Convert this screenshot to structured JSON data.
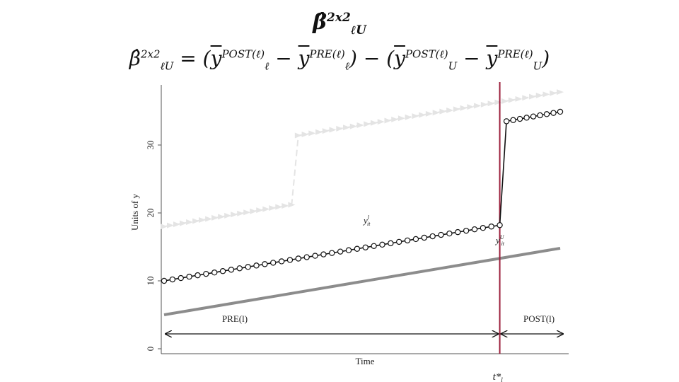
{
  "slide": {
    "title": "β̂",
    "title_sup": "2x2",
    "title_sub": "ℓU",
    "formula": {
      "lhs": "β̂",
      "lhs_sup": "2x2",
      "lhs_sub": "ℓU",
      "eq": "=",
      "open": "(",
      "close": ")",
      "minus": "−",
      "ybar": "y",
      "post_sup": "POST(ℓ)",
      "pre_sup": "PRE(ℓ)",
      "sub_l": "ℓ",
      "sub_U": "U"
    }
  },
  "chart_data": {
    "type": "line",
    "xlabel": "Time",
    "ylabel": "Units of y",
    "ylim": [
      0,
      40
    ],
    "yticks": [
      0,
      10,
      20,
      30
    ],
    "xlim": [
      0,
      60
    ],
    "treatment_time": 51,
    "treatment_label_main": "t*",
    "treatment_label_sub": "l",
    "region_labels": {
      "pre": "PRE(l)",
      "post": "POST(l)"
    },
    "series": [
      {
        "name": "treated-l",
        "label_main": "y",
        "label_sup": "l",
        "label_sub": "it",
        "style": "black-circles",
        "segments": [
          {
            "x": [
              1,
              51
            ],
            "y": [
              10.0,
              18.2
            ],
            "count": 41
          },
          {
            "x": [
              52,
              60
            ],
            "y": [
              33.5,
              34.9
            ],
            "count": 9
          }
        ]
      },
      {
        "name": "dashed-k",
        "style": "light-grey-triangles-dashed",
        "segments": [
          {
            "x": [
              1,
              20
            ],
            "y": [
              18.0,
              21.2
            ],
            "count": 21
          },
          {
            "x": [
              21,
              60
            ],
            "y": [
              31.4,
              37.8
            ],
            "count": 39
          }
        ]
      },
      {
        "name": "untreated-U",
        "label_main": "y",
        "label_sup": "U",
        "label_sub": "it",
        "style": "grey-thick",
        "segments": [
          {
            "x": [
              1,
              60
            ],
            "y": [
              5.0,
              14.8
            ]
          }
        ]
      }
    ],
    "colors": {
      "treated": "#111111",
      "dashed": "#e4e4e4",
      "untreated": "#8c8c8c",
      "vline": "#9c1f3c"
    }
  }
}
